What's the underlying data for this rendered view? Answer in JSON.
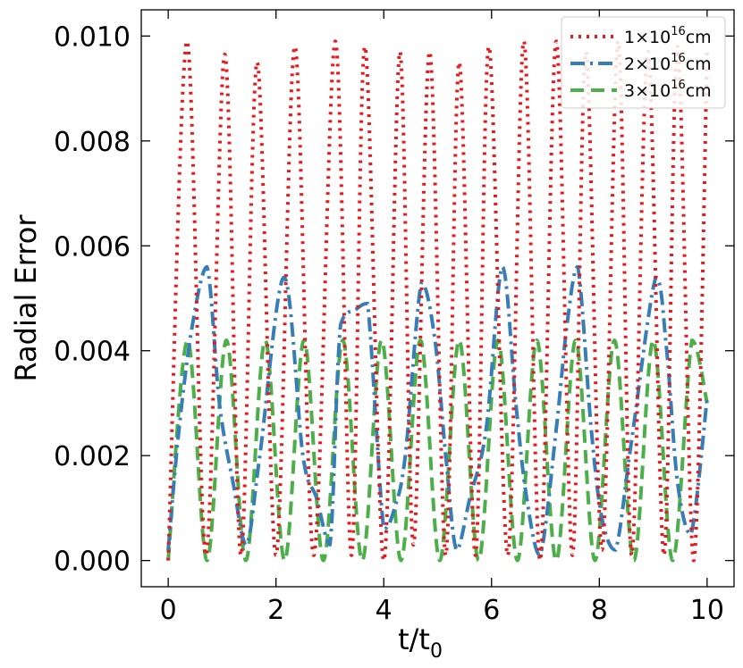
{
  "chart_data": {
    "type": "line",
    "xlabel": "t/t",
    "xlabel_sub": "0",
    "ylabel": "Radial Error",
    "xlim": [
      -0.5,
      10.5
    ],
    "ylim": [
      -0.0005,
      0.0105
    ],
    "xticks": [
      0,
      2,
      4,
      6,
      8,
      10
    ],
    "xtick_labels": [
      "0",
      "2",
      "4",
      "6",
      "8",
      "10"
    ],
    "yticks": [
      0.0,
      0.002,
      0.004,
      0.006,
      0.008,
      0.01
    ],
    "ytick_labels": [
      "0.000",
      "0.002",
      "0.004",
      "0.006",
      "0.008",
      "0.010"
    ],
    "grid": false,
    "legend_position": "top-right",
    "series": [
      {
        "name": "1×10¹⁶cm",
        "label_pre": "1×10",
        "label_sup": "16",
        "label_post": "cm",
        "color": "#e41a1c",
        "style": "dotted",
        "x": [
          0.0,
          0.35,
          0.7,
          1.05,
          1.35,
          1.65,
          2.0,
          2.35,
          2.7,
          3.1,
          3.4,
          3.65,
          4.0,
          4.3,
          4.55,
          4.85,
          5.15,
          5.4,
          5.7,
          5.95,
          6.3,
          6.6,
          6.9,
          7.2,
          7.5,
          7.75,
          8.05,
          8.35,
          8.6,
          8.9,
          9.2,
          9.45,
          9.75,
          10.0
        ],
        "y": [
          0.0,
          0.0099,
          0.0001,
          0.00965,
          0.0001,
          0.0095,
          0.0001,
          0.0098,
          0.0001,
          0.0099,
          0.0001,
          0.0098,
          0.0,
          0.0097,
          0.0003,
          0.0097,
          0.0001,
          0.0095,
          0.0001,
          0.0098,
          0.0001,
          0.0099,
          0.0,
          0.0099,
          0.0001,
          0.0097,
          0.0002,
          0.0099,
          0.0001,
          0.0097,
          0.0001,
          0.0098,
          0.0,
          0.0097
        ]
      },
      {
        "name": "2×10¹⁶cm",
        "label_pre": "2×10",
        "label_sup": "16",
        "label_post": "cm",
        "color": "#377eb8",
        "style": "dashdot",
        "x": [
          0.0,
          0.2,
          0.45,
          0.72,
          0.95,
          1.2,
          1.45,
          1.7,
          2.15,
          2.5,
          2.75,
          3.0,
          3.2,
          3.5,
          3.7,
          4.0,
          4.2,
          4.4,
          4.7,
          4.95,
          5.15,
          5.35,
          5.6,
          5.9,
          6.2,
          6.45,
          6.65,
          6.9,
          7.2,
          7.4,
          7.6,
          7.85,
          8.05,
          8.3,
          8.6,
          9.05,
          9.25,
          9.45,
          9.7,
          10.0
        ],
        "y": [
          0.0002,
          0.0025,
          0.0045,
          0.0056,
          0.003,
          0.0015,
          0.0003,
          0.002,
          0.0054,
          0.002,
          0.0012,
          0.0003,
          0.0045,
          0.0048,
          0.0049,
          0.0006,
          0.001,
          0.002,
          0.0053,
          0.0042,
          0.002,
          0.0002,
          0.0012,
          0.0025,
          0.0056,
          0.003,
          0.0012,
          0.0001,
          0.0025,
          0.0045,
          0.0056,
          0.0025,
          0.0008,
          0.0002,
          0.0023,
          0.0054,
          0.004,
          0.0015,
          0.0005,
          0.0031
        ]
      },
      {
        "name": "3×10¹⁶cm",
        "label_pre": "3×10",
        "label_sup": "16",
        "label_post": "cm",
        "color": "#4daf4a",
        "style": "dashed",
        "x": [
          0.0,
          0.36,
          0.72,
          1.08,
          1.44,
          1.8,
          2.16,
          2.52,
          2.88,
          3.24,
          3.6,
          3.96,
          4.32,
          4.68,
          5.04,
          5.4,
          5.76,
          6.12,
          6.48,
          6.84,
          7.2,
          7.56,
          7.92,
          8.28,
          8.64,
          9.0,
          9.36,
          9.72,
          10.0
        ],
        "y": [
          0.0,
          0.0042,
          0.0,
          0.0042,
          0.0,
          0.0042,
          0.0,
          0.0042,
          0.0,
          0.0042,
          0.0,
          0.0042,
          0.0,
          0.0042,
          0.0,
          0.0042,
          0.0,
          0.0042,
          0.0,
          0.0042,
          0.0,
          0.0042,
          0.0,
          0.0042,
          0.0,
          0.0042,
          0.0,
          0.0042,
          0.003
        ]
      }
    ]
  }
}
